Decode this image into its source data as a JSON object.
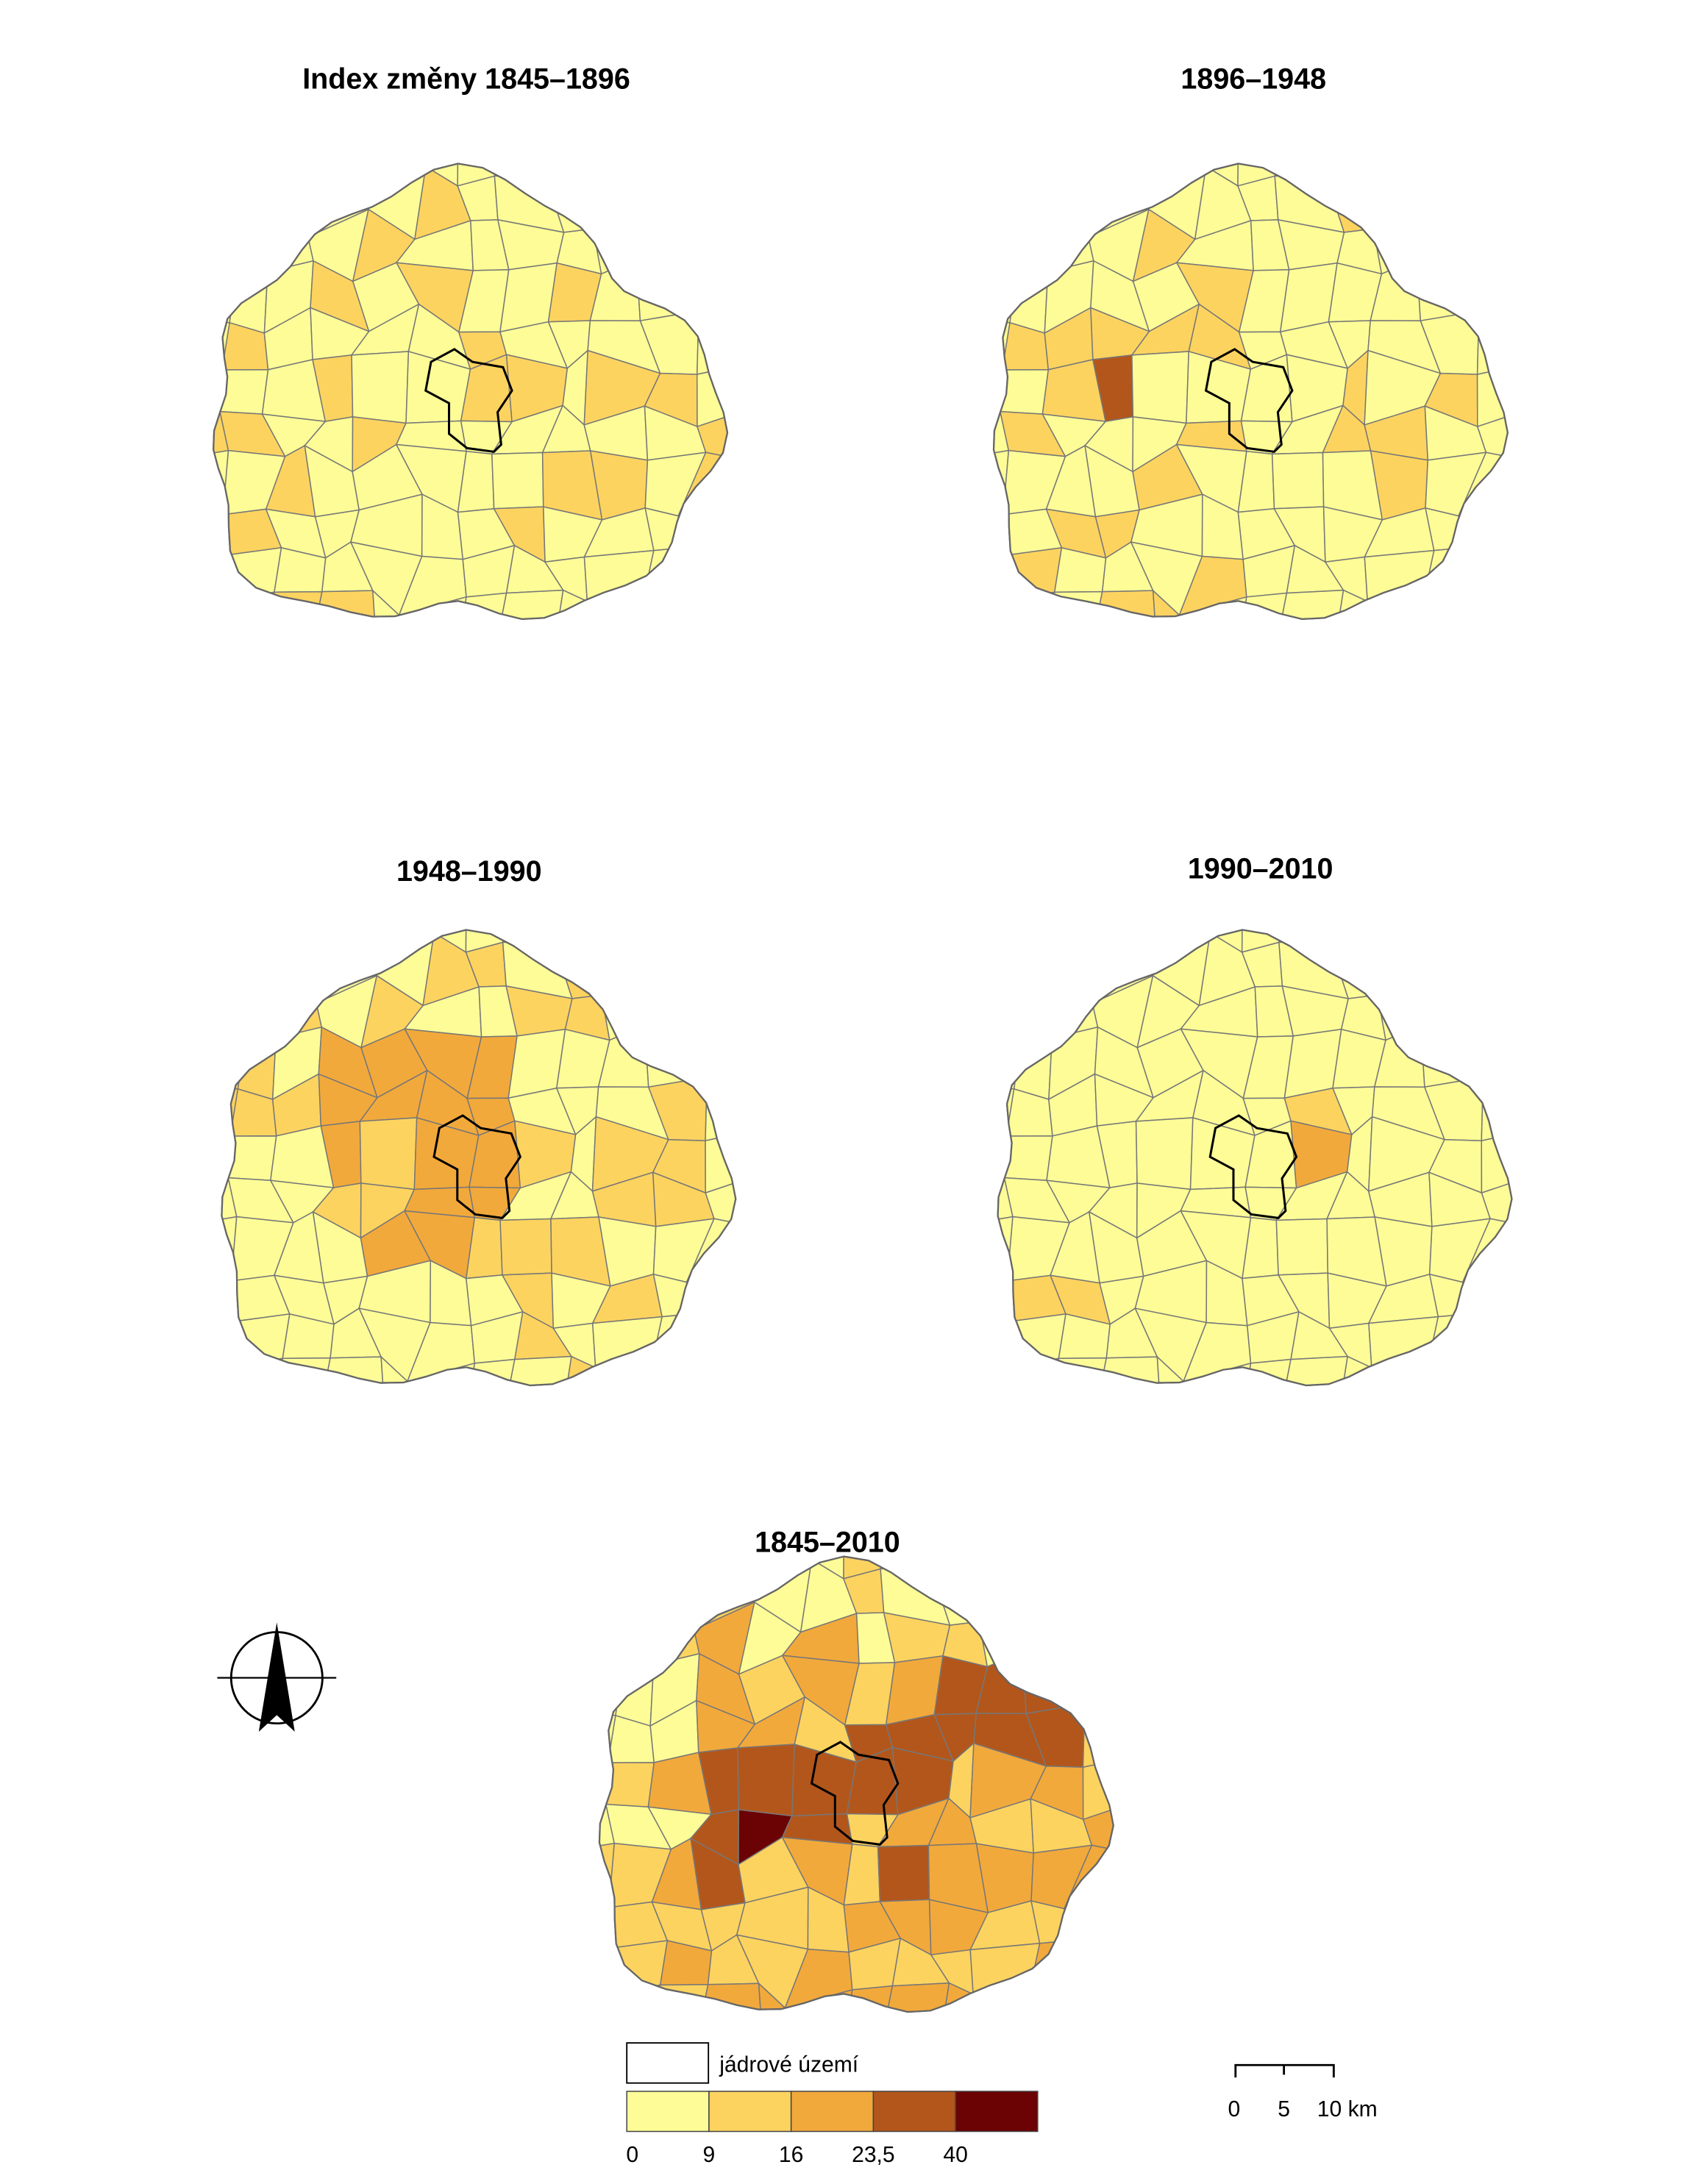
{
  "maps": [
    {
      "title": "Index změny 1845–1896"
    },
    {
      "title": "1896–1948"
    },
    {
      "title": "1948–1990"
    },
    {
      "title": "1990–2010"
    },
    {
      "title": "1845–2010"
    }
  ],
  "legend": {
    "core_label": "jádrové území",
    "colors": [
      "#fdfc97",
      "#fdd35f",
      "#f2a93b",
      "#b3561b",
      "#6b0204"
    ],
    "breaks": [
      "0",
      "9",
      "16",
      "23,5",
      "40"
    ]
  },
  "scale_bar": {
    "labels": [
      "0",
      "5",
      "10 km"
    ]
  }
}
